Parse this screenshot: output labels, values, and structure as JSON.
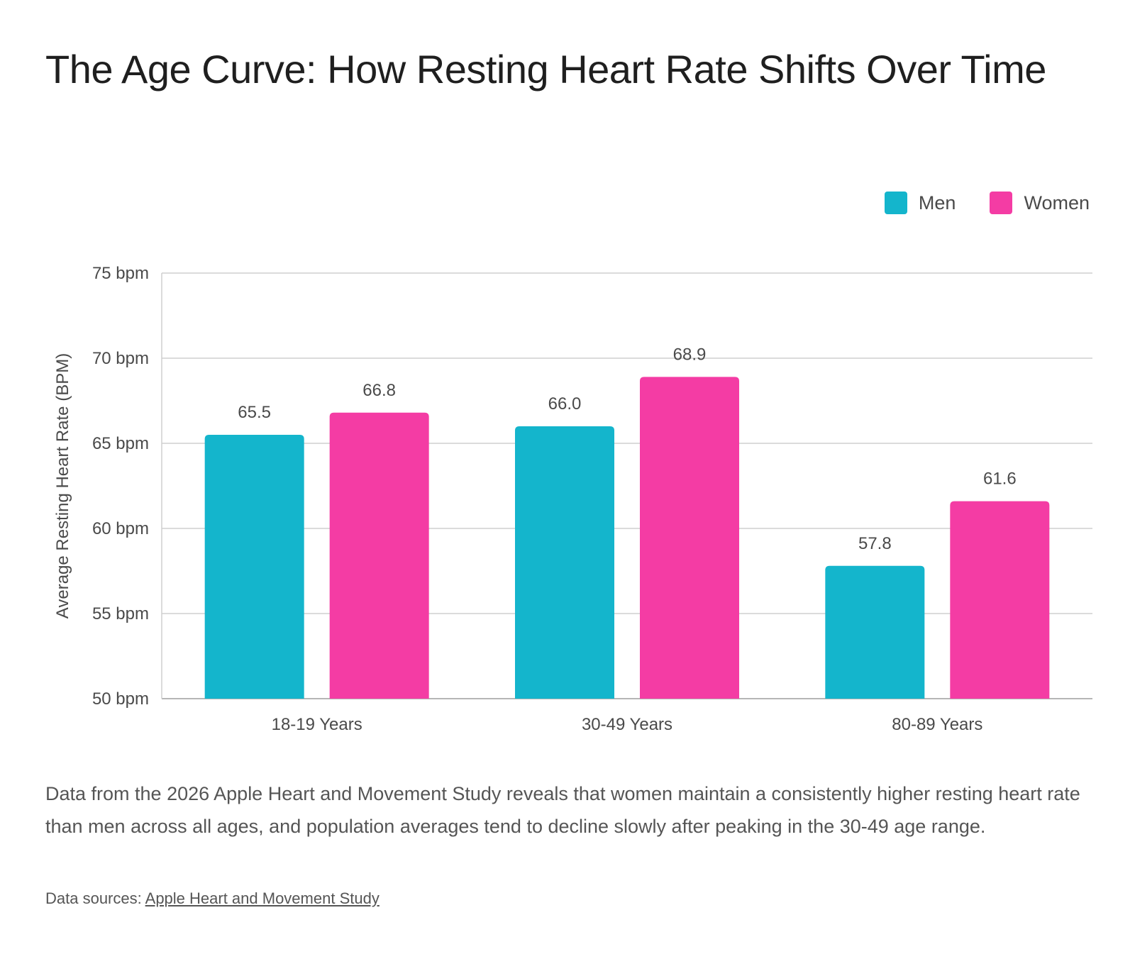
{
  "chart_data": {
    "type": "bar",
    "title": "The Age Curve: How Resting Heart Rate Shifts Over Time",
    "ylabel": "Average Resting Heart Rate (BPM)",
    "xlabel": "",
    "categories": [
      "18-19 Years",
      "30-49 Years",
      "80-89 Years"
    ],
    "series": [
      {
        "name": "Men",
        "color": "#14b5cc",
        "values": [
          65.5,
          66.0,
          57.8
        ]
      },
      {
        "name": "Women",
        "color": "#f43ca4",
        "values": [
          66.8,
          68.9,
          61.6
        ]
      }
    ],
    "ylim": [
      50,
      75
    ],
    "yticks": [
      50,
      55,
      60,
      65,
      70,
      75
    ],
    "ytick_suffix": " bpm",
    "data_labels": [
      "65.5",
      "66.0",
      "57.8",
      "66.8",
      "68.9",
      "61.6"
    ],
    "ytick_labels": [
      "50 bpm",
      "55 bpm",
      "60 bpm",
      "65 bpm",
      "70 bpm",
      "75 bpm"
    ],
    "grid": true,
    "legend_position": "top-right"
  },
  "description": "Data from the 2026 Apple Heart and Movement Study reveals that women maintain a consistently higher resting heart rate than men across all ages, and population averages tend to decline slowly after peaking in the 30-49 age range.",
  "sources": {
    "label": "Data sources:",
    "link_text": "Apple Heart and Movement Study"
  }
}
